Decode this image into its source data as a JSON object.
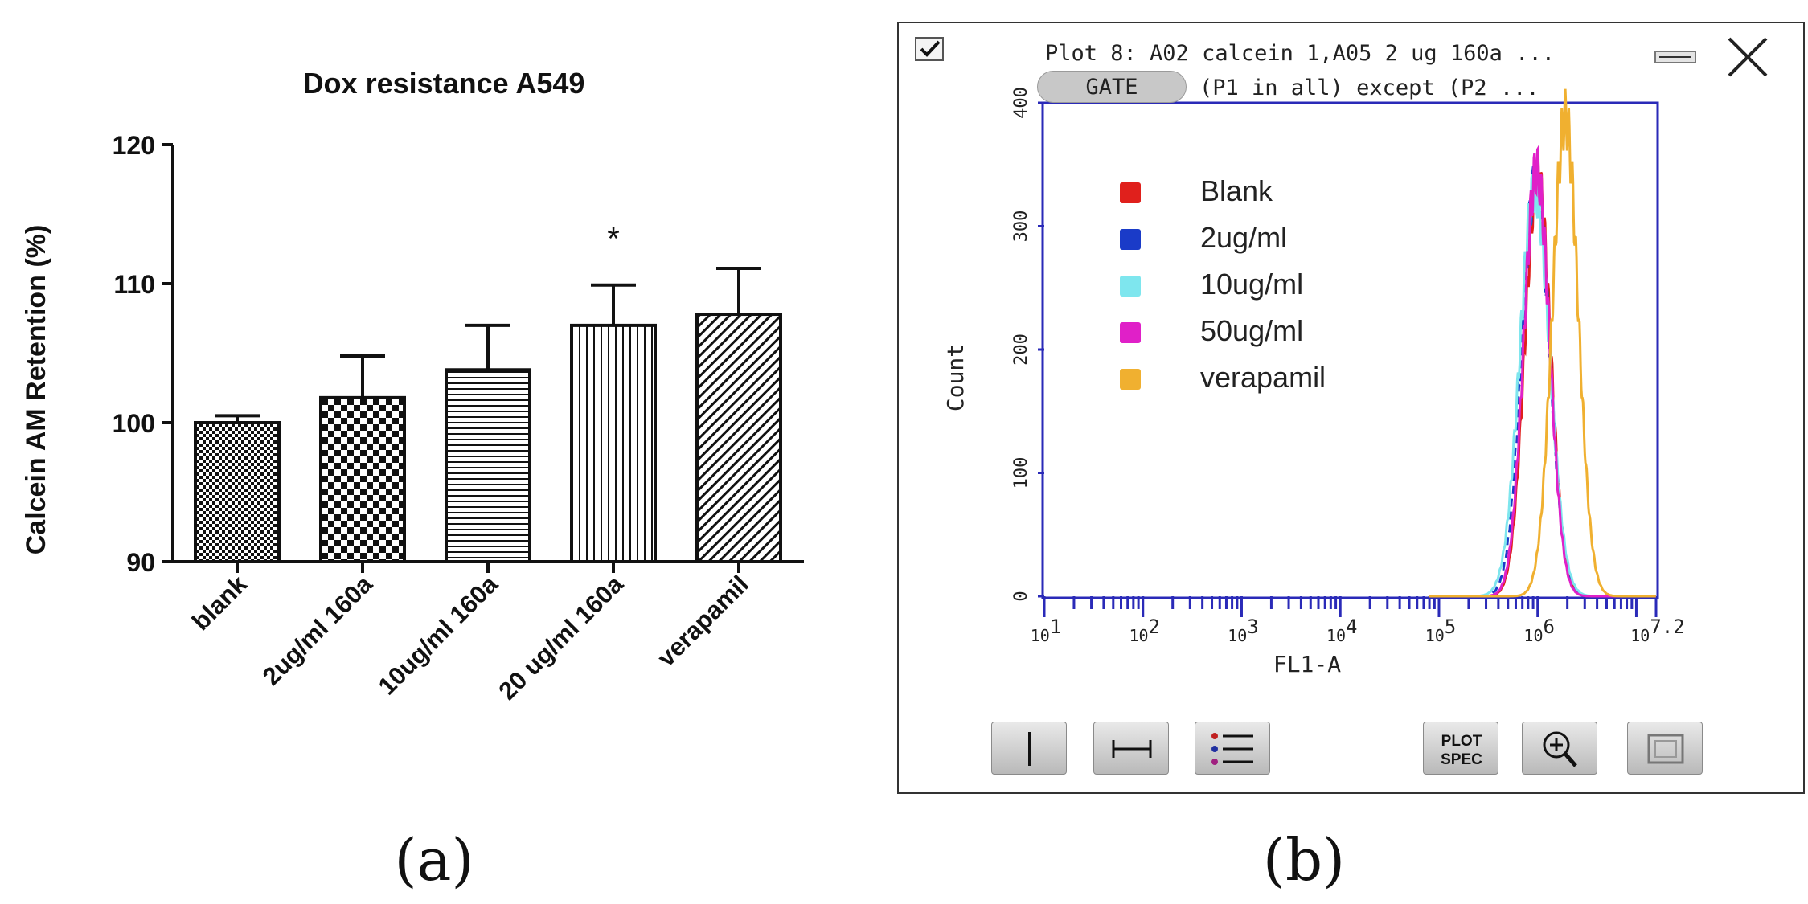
{
  "panels": {
    "a_label": "(a)",
    "b_label": "(b)"
  },
  "chart_data": [
    {
      "type": "bar",
      "title": "Dox resistance A549",
      "xlabel": "",
      "ylabel": "Calcein AM Retention (%)",
      "categories": [
        "blank",
        "2ug/ml 160a",
        "10ug/ml 160a",
        "20 ug/ml 160a",
        "verapamil"
      ],
      "values": [
        100,
        101.8,
        103.8,
        107,
        107.8
      ],
      "errors": [
        0.5,
        3,
        3.2,
        2.9,
        3.3
      ],
      "patterns": [
        "fine-checker",
        "coarse-checker",
        "horizontal-lines",
        "vertical-lines",
        "diagonal-lines"
      ],
      "annotations": [
        {
          "category": "20 ug/ml 160a",
          "text": "*"
        }
      ],
      "ylim": [
        90,
        120
      ],
      "yticks": [
        90,
        100,
        110,
        120
      ]
    },
    {
      "type": "line",
      "window_title": "Plot 8: A02 calcein 1,A05 2 ug 160a ...",
      "gate_label": "GATE",
      "gate_text": "(P1 in all) except (P2 ...",
      "xlabel": "FL1-A",
      "ylabel": "Count",
      "xscale": "log",
      "xlim": [
        1,
        7.2
      ],
      "ylim": [
        0,
        400
      ],
      "yticks": [
        0,
        100,
        200,
        300,
        400
      ],
      "xtick_labels": [
        "10^1",
        "10^2",
        "10^3",
        "10^4",
        "10^5",
        "10^6",
        "10^7.2"
      ],
      "legend_position": "top-left",
      "series": [
        {
          "name": "Blank",
          "color": "#e0201c",
          "peak_x": 6.0,
          "peak_y": 340,
          "sigma": 0.13
        },
        {
          "name": "2ug/ml",
          "color": "#1a3bc8",
          "peak_x": 5.98,
          "peak_y": 336,
          "sigma": 0.14
        },
        {
          "name": "10ug/ml",
          "color": "#7ee6ee",
          "peak_x": 5.97,
          "peak_y": 330,
          "sigma": 0.15
        },
        {
          "name": "50ug/ml",
          "color": "#e020c8",
          "peak_x": 5.99,
          "peak_y": 346,
          "sigma": 0.13
        },
        {
          "name": "verapamil",
          "color": "#f0b030",
          "peak_x": 6.28,
          "peak_y": 388,
          "sigma": 0.13
        }
      ],
      "toolbar": [
        "vertical-gate-icon",
        "range-gate-icon",
        "legend-list-icon",
        "plot-spec-button",
        "zoom-icon",
        "fit-view-icon"
      ],
      "plot_spec_lines": [
        "PLOT",
        "SPEC"
      ]
    }
  ]
}
